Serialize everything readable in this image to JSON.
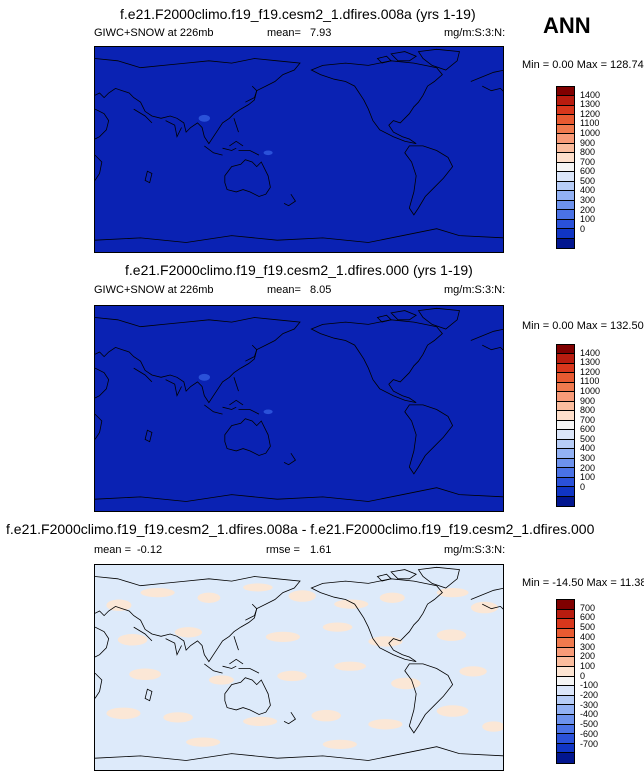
{
  "season": "ANN",
  "panels": [
    {
      "title": "f.e21.F2000climo.f19_f19.cesm2_1.dfires.008a (yrs 1-19)",
      "variable": "GIWC+SNOW at 226mb",
      "stat1_label": "mean=",
      "stat1_value": "7.93",
      "stat2_label": "",
      "stat2_value": "",
      "units": "mg/m:S:3:N:",
      "minmax": "Min =   0.00 Max = 128.74",
      "fill_color": "#0a22b3",
      "colorbar_colors": [
        "#800000",
        "#b81c0f",
        "#d8371c",
        "#e85a31",
        "#f07a4e",
        "#f89b78",
        "#fbbd9e",
        "#fedfcb",
        "#f5f5f5",
        "#dbe6fa",
        "#b7cdf7",
        "#92b1f4",
        "#6d92ed",
        "#4a72e6",
        "#2a51d9",
        "#1035c4",
        "#02168f"
      ],
      "colorbar_labels": [
        "1400",
        "1300",
        "1200",
        "1100",
        "1000",
        "900",
        "800",
        "700",
        "600",
        "500",
        "400",
        "300",
        "200",
        "100",
        "0"
      ]
    },
    {
      "title": "f.e21.F2000climo.f19_f19.cesm2_1.dfires.000 (yrs 1-19)",
      "variable": "GIWC+SNOW at 226mb",
      "stat1_label": "mean=",
      "stat1_value": "8.05",
      "stat2_label": "",
      "stat2_value": "",
      "units": "mg/m:S:3:N:",
      "minmax": "Min =   0.00 Max = 132.50",
      "fill_color": "#0a22b3",
      "colorbar_colors": [
        "#800000",
        "#b81c0f",
        "#d8371c",
        "#e85a31",
        "#f07a4e",
        "#f89b78",
        "#fbbd9e",
        "#fedfcb",
        "#f5f5f5",
        "#dbe6fa",
        "#b7cdf7",
        "#92b1f4",
        "#6d92ed",
        "#4a72e6",
        "#2a51d9",
        "#1035c4",
        "#02168f"
      ],
      "colorbar_labels": [
        "1400",
        "1300",
        "1200",
        "1100",
        "1000",
        "900",
        "800",
        "700",
        "600",
        "500",
        "400",
        "300",
        "200",
        "100",
        "0"
      ]
    },
    {
      "title": "f.e21.F2000climo.f19_f19.cesm2_1.dfires.008a - f.e21.F2000climo.f19_f19.cesm2_1.dfires.000",
      "variable": "",
      "stat1_label": "mean =",
      "stat1_value": "-0.12",
      "stat2_label": "rmse =",
      "stat2_value": "1.61",
      "units": "mg/m:S:3:N:",
      "minmax": "Min = -14.50 Max =  11.38",
      "fill_color": "#ddeafa",
      "colorbar_colors": [
        "#800000",
        "#b81c0f",
        "#d8371c",
        "#e85a31",
        "#f07a4e",
        "#f89b78",
        "#fbbd9e",
        "#fde5d3",
        "#f5f5f5",
        "#dbe6fa",
        "#b7cdf7",
        "#92b1f4",
        "#6d92ed",
        "#4a72e6",
        "#2a51d9",
        "#1035c4",
        "#02168f"
      ],
      "colorbar_labels": [
        "700",
        "600",
        "500",
        "400",
        "300",
        "200",
        "100",
        "0",
        "-100",
        "-200",
        "-300",
        "-400",
        "-500",
        "-600",
        "-700"
      ]
    }
  ],
  "chart_data": [
    {
      "type": "heatmap",
      "title": "f.e21.F2000climo.f19_f19.cesm2_1.dfires.008a (yrs 1-19)",
      "field": "GIWC+SNOW at 226mb",
      "mean": 7.93,
      "min": 0.0,
      "max": 128.74,
      "contour_levels": [
        0,
        100,
        200,
        300,
        400,
        500,
        600,
        700,
        800,
        900,
        1000,
        1100,
        1200,
        1300,
        1400
      ]
    },
    {
      "type": "heatmap",
      "title": "f.e21.F2000climo.f19_f19.cesm2_1.dfires.000 (yrs 1-19)",
      "field": "GIWC+SNOW at 226mb",
      "mean": 8.05,
      "min": 0.0,
      "max": 132.5,
      "contour_levels": [
        0,
        100,
        200,
        300,
        400,
        500,
        600,
        700,
        800,
        900,
        1000,
        1100,
        1200,
        1300,
        1400
      ]
    },
    {
      "type": "heatmap",
      "title": "f.e21.F2000climo.f19_f19.cesm2_1.dfires.008a - f.e21.F2000climo.f19_f19.cesm2_1.dfires.000",
      "mean": -0.12,
      "rmse": 1.61,
      "min": -14.5,
      "max": 11.38,
      "contour_levels": [
        -700,
        -600,
        -500,
        -400,
        -300,
        -200,
        -100,
        0,
        100,
        200,
        300,
        400,
        500,
        600,
        700
      ]
    }
  ]
}
